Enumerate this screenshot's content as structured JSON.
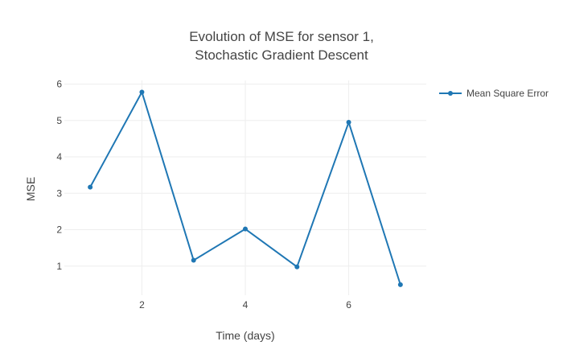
{
  "chart_data": {
    "type": "line",
    "title_lines": [
      "Evolution of MSE for sensor 1,",
      "Stochastic Gradient Descent"
    ],
    "xlabel": "Time (days)",
    "ylabel": "MSE",
    "x": [
      1,
      2,
      3,
      4,
      5,
      6,
      7
    ],
    "series": [
      {
        "name": "Mean Square Error",
        "values": [
          3.17,
          5.78,
          1.16,
          2.02,
          0.98,
          4.95,
          0.49
        ],
        "color": "#1f77b4"
      }
    ],
    "xlim": [
      0.5,
      7.5
    ],
    "ylim": [
      0.2,
      6.1
    ],
    "x_ticks": [
      2,
      4,
      6
    ],
    "x_tick_labels": [
      "2",
      "4",
      "6"
    ],
    "y_ticks": [
      1,
      2,
      3,
      4,
      5,
      6
    ],
    "y_tick_labels": [
      "1",
      "2",
      "3",
      "4",
      "5",
      "6"
    ],
    "grid": true,
    "legend_position": "top-right",
    "colors": {
      "grid": "#eeeeee",
      "text": "#444444"
    }
  }
}
